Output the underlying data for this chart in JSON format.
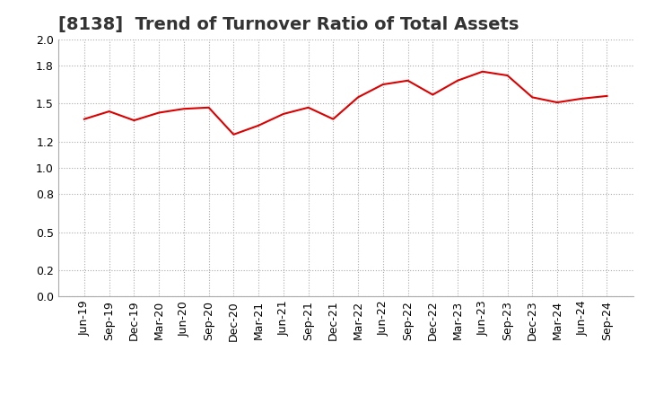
{
  "title": "[8138]  Trend of Turnover Ratio of Total Assets",
  "x_labels": [
    "Jun-19",
    "Sep-19",
    "Dec-19",
    "Mar-20",
    "Jun-20",
    "Sep-20",
    "Dec-20",
    "Mar-21",
    "Jun-21",
    "Sep-21",
    "Dec-21",
    "Mar-22",
    "Jun-22",
    "Sep-22",
    "Dec-22",
    "Mar-23",
    "Jun-23",
    "Sep-23",
    "Dec-23",
    "Mar-24",
    "Jun-24",
    "Sep-24"
  ],
  "y_values": [
    1.38,
    1.44,
    1.37,
    1.43,
    1.46,
    1.47,
    1.26,
    1.33,
    1.42,
    1.47,
    1.38,
    1.55,
    1.65,
    1.68,
    1.57,
    1.68,
    1.75,
    1.72,
    1.55,
    1.51,
    1.54,
    1.56
  ],
  "line_color": "#dd0000",
  "line_width": 1.5,
  "ylim": [
    0.0,
    2.0
  ],
  "yticks": [
    0.0,
    0.2,
    0.5,
    0.8,
    1.0,
    1.2,
    1.5,
    1.8,
    2.0
  ],
  "title_fontsize": 14,
  "tick_fontsize": 9,
  "bg_color": "#ffffff",
  "grid_color": "#aaaaaa",
  "grid_style": "dotted"
}
